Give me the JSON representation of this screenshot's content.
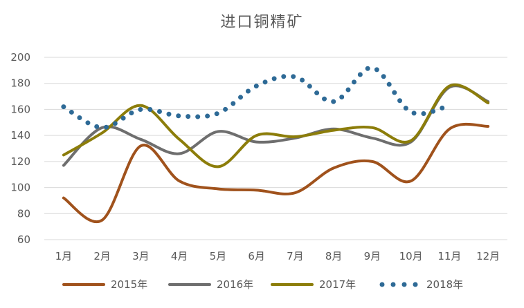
{
  "chart_data": {
    "type": "line",
    "title": "进口铜精矿",
    "xlabel": "",
    "ylabel": "",
    "categories": [
      "1月",
      "2月",
      "3月",
      "4月",
      "5月",
      "6月",
      "7月",
      "8月",
      "9月",
      "10月",
      "11月",
      "12月"
    ],
    "ylim": [
      60,
      200
    ],
    "yticks": [
      60,
      80,
      100,
      120,
      140,
      160,
      180,
      200
    ],
    "grid": true,
    "legend_position": "bottom",
    "series": [
      {
        "name": "2015年",
        "color": "#a0521c",
        "style": "solid",
        "values": [
          92,
          75,
          132,
          105,
          99,
          98,
          96,
          115,
          120,
          105,
          145,
          147
        ]
      },
      {
        "name": "2016年",
        "color": "#6e6e6e",
        "style": "solid",
        "values": [
          117,
          146,
          137,
          126,
          143,
          135,
          138,
          145,
          138,
          135,
          177,
          166
        ]
      },
      {
        "name": "2017年",
        "color": "#8c7d0a",
        "style": "solid",
        "values": [
          125,
          142,
          163,
          137,
          116,
          140,
          139,
          144,
          146,
          136,
          178,
          165
        ]
      },
      {
        "name": "2018年",
        "color": "#2e6a96",
        "style": "dotted",
        "values": [
          162,
          146,
          160,
          155,
          157,
          178,
          185,
          166,
          192,
          158,
          163,
          null
        ]
      }
    ]
  }
}
